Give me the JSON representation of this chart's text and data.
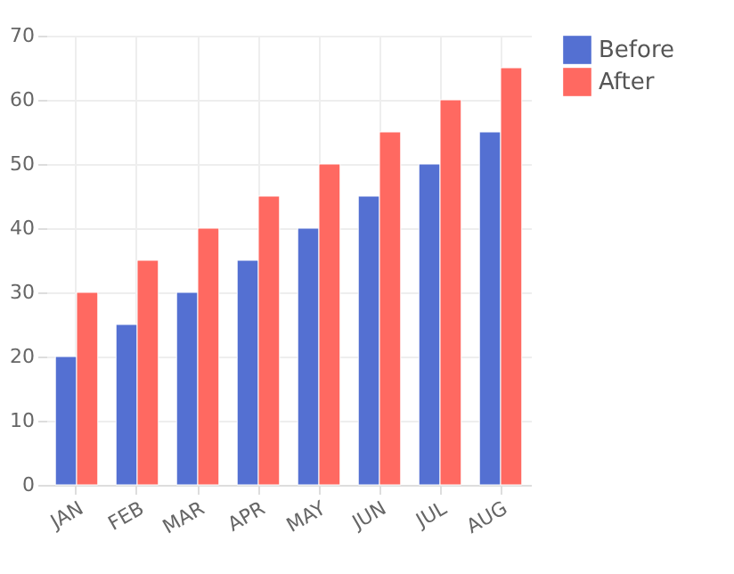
{
  "chart_data": {
    "type": "bar",
    "categories": [
      "JAN",
      "FEB",
      "MAR",
      "APR",
      "MAY",
      "JUN",
      "JUL",
      "AUG"
    ],
    "series": [
      {
        "name": "Before",
        "color": "#5470d2",
        "values": [
          20,
          25,
          30,
          35,
          40,
          45,
          50,
          55
        ]
      },
      {
        "name": "After",
        "color": "#ff6961",
        "values": [
          30,
          35,
          40,
          45,
          50,
          55,
          60,
          65
        ]
      }
    ],
    "ylim": [
      0,
      70
    ],
    "yticks": [
      0,
      10,
      20,
      30,
      40,
      50,
      60,
      70
    ],
    "grid": true,
    "legend": "right"
  }
}
